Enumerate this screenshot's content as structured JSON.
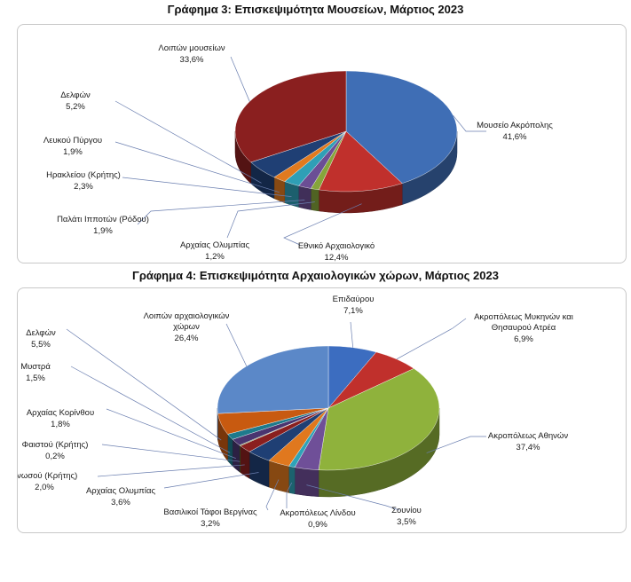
{
  "chart_data": [
    {
      "type": "pie",
      "title": "Γράφημα 3: Επισκεψιμότητα Μουσείων, Μάρτιος 2023",
      "slices": [
        {
          "name": "Μουσείο Ακρόπολης",
          "value_label": "41,6%",
          "value": 41.6,
          "color": "#3f6eb5"
        },
        {
          "name": "Εθνικό Αρχαιολογικό",
          "value_label": "12,4%",
          "value": 12.4,
          "color": "#c0302c"
        },
        {
          "name": "Αρχαίας Ολυμπίας",
          "value_label": "1,2%",
          "value": 1.2,
          "color": "#86a53b"
        },
        {
          "name": "Παλάτι Ιπποτών (Ρόδου)",
          "value_label": "1,9%",
          "value": 1.9,
          "color": "#6b4e95"
        },
        {
          "name": "Ηρακλείου (Κρήτης)",
          "value_label": "2,3%",
          "value": 2.3,
          "color": "#2f9fb6"
        },
        {
          "name": "Λευκού Πύργου",
          "value_label": "1,9%",
          "value": 1.9,
          "color": "#e17a1f"
        },
        {
          "name": "Δελφών",
          "value_label": "5,2%",
          "value": 5.2,
          "color": "#1f3f74"
        },
        {
          "name": "Λοιπών μουσείων",
          "value_label": "33,6%",
          "value": 33.6,
          "color": "#8a1f1f"
        }
      ]
    },
    {
      "type": "pie",
      "title": "Γράφημα 4: Επισκεψιμότητα Αρχαιολογικών χώρων, Μάρτιος 2023",
      "slices": [
        {
          "name": "Επιδαύρου",
          "value_label": "7,1%",
          "value": 7.1,
          "color": "#3c6dc0"
        },
        {
          "name": "Ακροπόλεως Μυκηνών και Θησαυρού Ατρέα",
          "value_label": "6,9%",
          "value": 6.9,
          "color": "#c0302c"
        },
        {
          "name": "Ακροπόλεως Αθηνών",
          "value_label": "37,4%",
          "value": 37.4,
          "color": "#8fb23c"
        },
        {
          "name": "Σουνίου",
          "value_label": "3,5%",
          "value": 3.5,
          "color": "#6f4f98"
        },
        {
          "name": "Ακροπόλεως Λίνδου",
          "value_label": "0,9%",
          "value": 0.9,
          "color": "#2fa3b8"
        },
        {
          "name": "Βασιλικοί Τάφοι Βεργίνας",
          "value_label": "3,2%",
          "value": 3.2,
          "color": "#e0781e"
        },
        {
          "name": "Αρχαίας Ολυμπίας",
          "value_label": "3,6%",
          "value": 3.6,
          "color": "#1f3f74"
        },
        {
          "name": "Κνωσού (Κρήτης)",
          "value_label": "2,0%",
          "value": 2.0,
          "color": "#8a1f1f"
        },
        {
          "name": "Φαιστού (Κρήτης)",
          "value_label": "0,2%",
          "value": 0.2,
          "color": "#5a7a2a"
        },
        {
          "name": "Αρχαίας Κορίνθου",
          "value_label": "1,8%",
          "value": 1.8,
          "color": "#4a3570"
        },
        {
          "name": "Μυστρά",
          "value_label": "1,5%",
          "value": 1.5,
          "color": "#1e7a8c"
        },
        {
          "name": "Δελφών",
          "value_label": "5,5%",
          "value": 5.5,
          "color": "#c85a10"
        },
        {
          "name": "Λοιπών αρχαιολογικών χώρων",
          "value_label": "26,4%",
          "value": 26.4,
          "color": "#5b88c8"
        }
      ]
    }
  ]
}
